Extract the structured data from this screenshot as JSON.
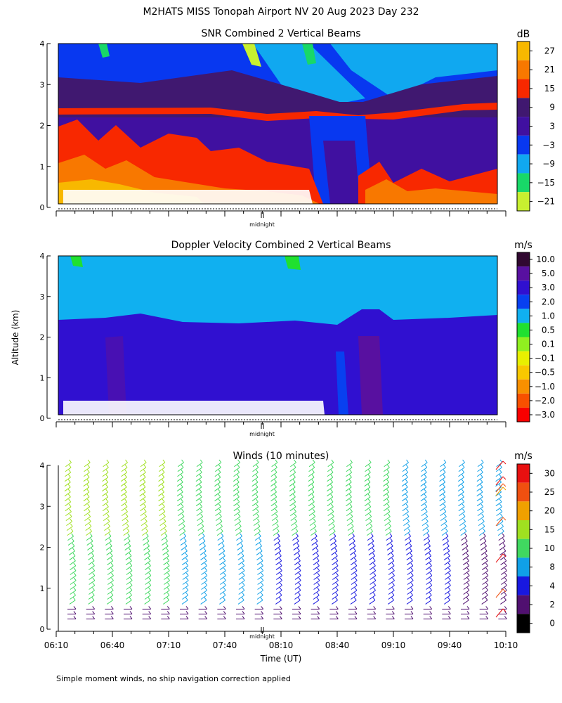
{
  "main_title": "M2HATS MISS Tonopah Airport NV  20 Aug 2023 Day 232",
  "y_axis_label": "Altitude (km)",
  "x_axis_label": "Time (UT)",
  "midnight_label": "midnight",
  "footnote": "Simple moment winds, no ship navigation correction applied",
  "x_ticks": [
    "06:10",
    "06:40",
    "07:10",
    "07:40",
    "08:10",
    "08:40",
    "09:10",
    "09:40",
    "10:10"
  ],
  "y_ticks": [
    "0",
    "1",
    "2",
    "3",
    "4"
  ],
  "chart_data": [
    {
      "type": "heatmap",
      "title": "SNR Combined 2 Vertical Beams",
      "unit": "dB",
      "x_range": [
        "06:10",
        "10:10"
      ],
      "ylim": [
        0,
        4
      ],
      "colorbar": {
        "labels": [
          "27",
          "21",
          "15",
          "9",
          "3",
          "−3",
          "−9",
          "−15",
          "−21"
        ],
        "colors": [
          "#f8b800",
          "#f87800",
          "#f82800",
          "#401870",
          "#4010a0",
          "#0838f0",
          "#10a8f0",
          "#18d868",
          "#c8f030"
        ]
      },
      "features": {
        "boundary_layer_top_km": 2.4,
        "low_level_max_dB": 21,
        "upper_level_dB": [
          -3,
          -9
        ],
        "data_gap_below_km": 0.4
      }
    },
    {
      "type": "heatmap",
      "title": "Doppler Velocity Combined 2 Vertical Beams",
      "unit": "m/s",
      "x_range": [
        "06:10",
        "10:10"
      ],
      "ylim": [
        0,
        4
      ],
      "colorbar": {
        "labels": [
          "10.0",
          "5.0",
          "3.0",
          "2.0",
          "1.0",
          "0.5",
          "0.1",
          "−0.1",
          "−0.5",
          "−1.0",
          "−2.0",
          "−3.0"
        ],
        "colors": [
          "#300830",
          "#5810a0",
          "#3010d0",
          "#0840f0",
          "#10b0f0",
          "#20e030",
          "#90f020",
          "#e8f000",
          "#f8c800",
          "#f89000",
          "#f85000",
          "#f80000"
        ]
      },
      "features": {
        "layer_top_km": 2.4,
        "above_layer_m_s": 1.0,
        "below_layer_m_s": 3.0
      }
    },
    {
      "type": "scatter",
      "subtype": "wind-barbs",
      "title": "Winds (10 minutes)",
      "unit": "m/s",
      "x_range": [
        "06:10",
        "10:10"
      ],
      "ylim": [
        0,
        4
      ],
      "colorbar": {
        "labels": [
          "30",
          "25",
          "20",
          "15",
          "10",
          "8",
          "4",
          "2",
          "0"
        ],
        "colors": [
          "#e81010",
          "#f05010",
          "#f0a000",
          "#a0e020",
          "#40d860",
          "#10a0e8",
          "#1818e0",
          "#501070",
          "#000000"
        ]
      },
      "profile_times": [
        "06:16",
        "06:26",
        "06:36",
        "06:46",
        "06:56",
        "07:06",
        "07:16",
        "07:26",
        "07:36",
        "07:46",
        "07:56",
        "08:06",
        "08:16",
        "08:26",
        "08:36",
        "08:46",
        "08:56",
        "09:06",
        "09:16",
        "09:26",
        "09:36",
        "09:46",
        "09:56",
        "10:06"
      ]
    }
  ]
}
